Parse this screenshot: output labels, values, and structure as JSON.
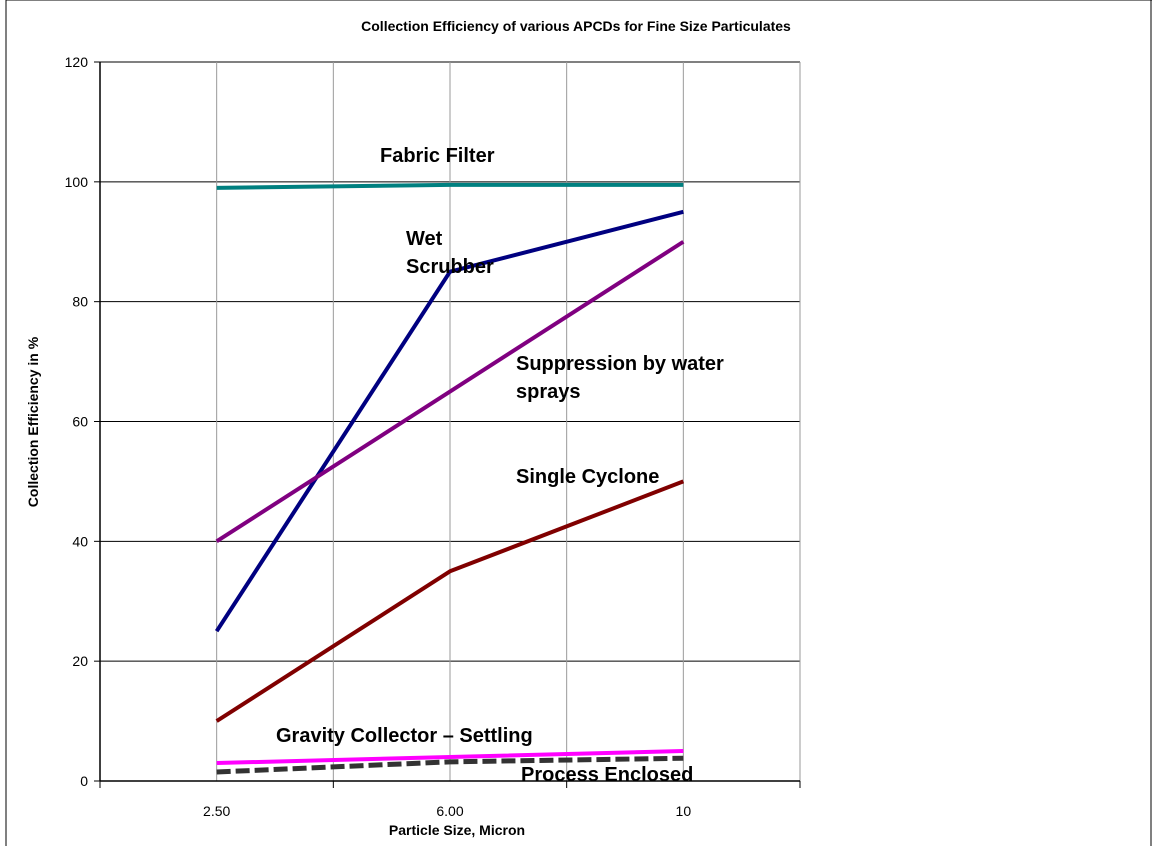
{
  "chart_data": {
    "type": "line",
    "title": "Collection Efficiency of various APCDs for Fine Size Particulates",
    "xlabel": "Particle Size, Micron",
    "ylabel": "Collection Efficiency in %",
    "categories": [
      "2.50",
      "6.00",
      "10"
    ],
    "ylim": [
      0,
      120
    ],
    "yticks": [
      0,
      20,
      40,
      60,
      80,
      100,
      120
    ],
    "grid": true,
    "legend": "none",
    "series": [
      {
        "name": "Fabric Filter",
        "values": [
          99,
          99.5,
          99.5
        ],
        "color": "#008080"
      },
      {
        "name": "Wet Scrubber",
        "values": [
          25,
          85,
          95
        ],
        "color": "#000080"
      },
      {
        "name": "Suppression by water sprays",
        "values": [
          40,
          65,
          90
        ],
        "color": "#800080"
      },
      {
        "name": "Single Cyclone",
        "values": [
          10,
          35,
          50
        ],
        "color": "#800000"
      },
      {
        "name": "Gravity Collector – Settling",
        "values": [
          3,
          4,
          5
        ],
        "color": "#ff00ff"
      },
      {
        "name": "Process Enclosed",
        "values": [
          1.5,
          3.2,
          3.8
        ],
        "color": "#333333"
      }
    ],
    "annotations": [
      {
        "lines": [
          "Fabric Filter"
        ]
      },
      {
        "lines": [
          "Wet",
          "Scrubber"
        ]
      },
      {
        "lines": [
          "Suppression by water",
          "sprays"
        ]
      },
      {
        "lines": [
          "Single Cyclone"
        ]
      },
      {
        "lines": [
          "Gravity Collector – Settling"
        ]
      },
      {
        "lines": [
          "Process Enclosed"
        ]
      }
    ]
  }
}
